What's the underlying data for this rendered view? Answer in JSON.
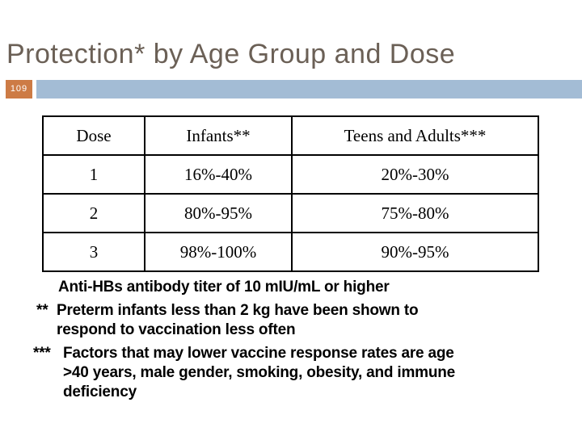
{
  "slide": {
    "title": "Protection* by Age Group and Dose",
    "slide_number": "109",
    "colors": {
      "background": "#ffffff",
      "title_text": "#6b6056",
      "slide_number_badge": "#cd7b45",
      "header_bar": "#a3bcd5",
      "table_border": "#000000",
      "body_text": "#000000"
    }
  },
  "table": {
    "headers": [
      "Dose",
      "Infants**",
      "Teens and Adults***"
    ],
    "rows": [
      {
        "dose": "1",
        "infants": "16%-40%",
        "teens_adults": "20%-30%"
      },
      {
        "dose": "2",
        "infants": "80%-95%",
        "teens_adults": "75%-80%"
      },
      {
        "dose": "3",
        "infants": "98%-100%",
        "teens_adults": "90%-95%"
      }
    ]
  },
  "footnotes": [
    {
      "marker": "",
      "lines": [
        "Anti-HBs antibody titer of 10 mIU/mL or higher"
      ]
    },
    {
      "marker": "**",
      "lines": [
        "Preterm infants less than 2 kg have been shown to",
        "respond to vaccination less often"
      ]
    },
    {
      "marker": "***",
      "lines": [
        "Factors that may lower vaccine response rates are age",
        ">40 years, male gender, smoking, obesity, and immune",
        "deficiency"
      ]
    }
  ]
}
